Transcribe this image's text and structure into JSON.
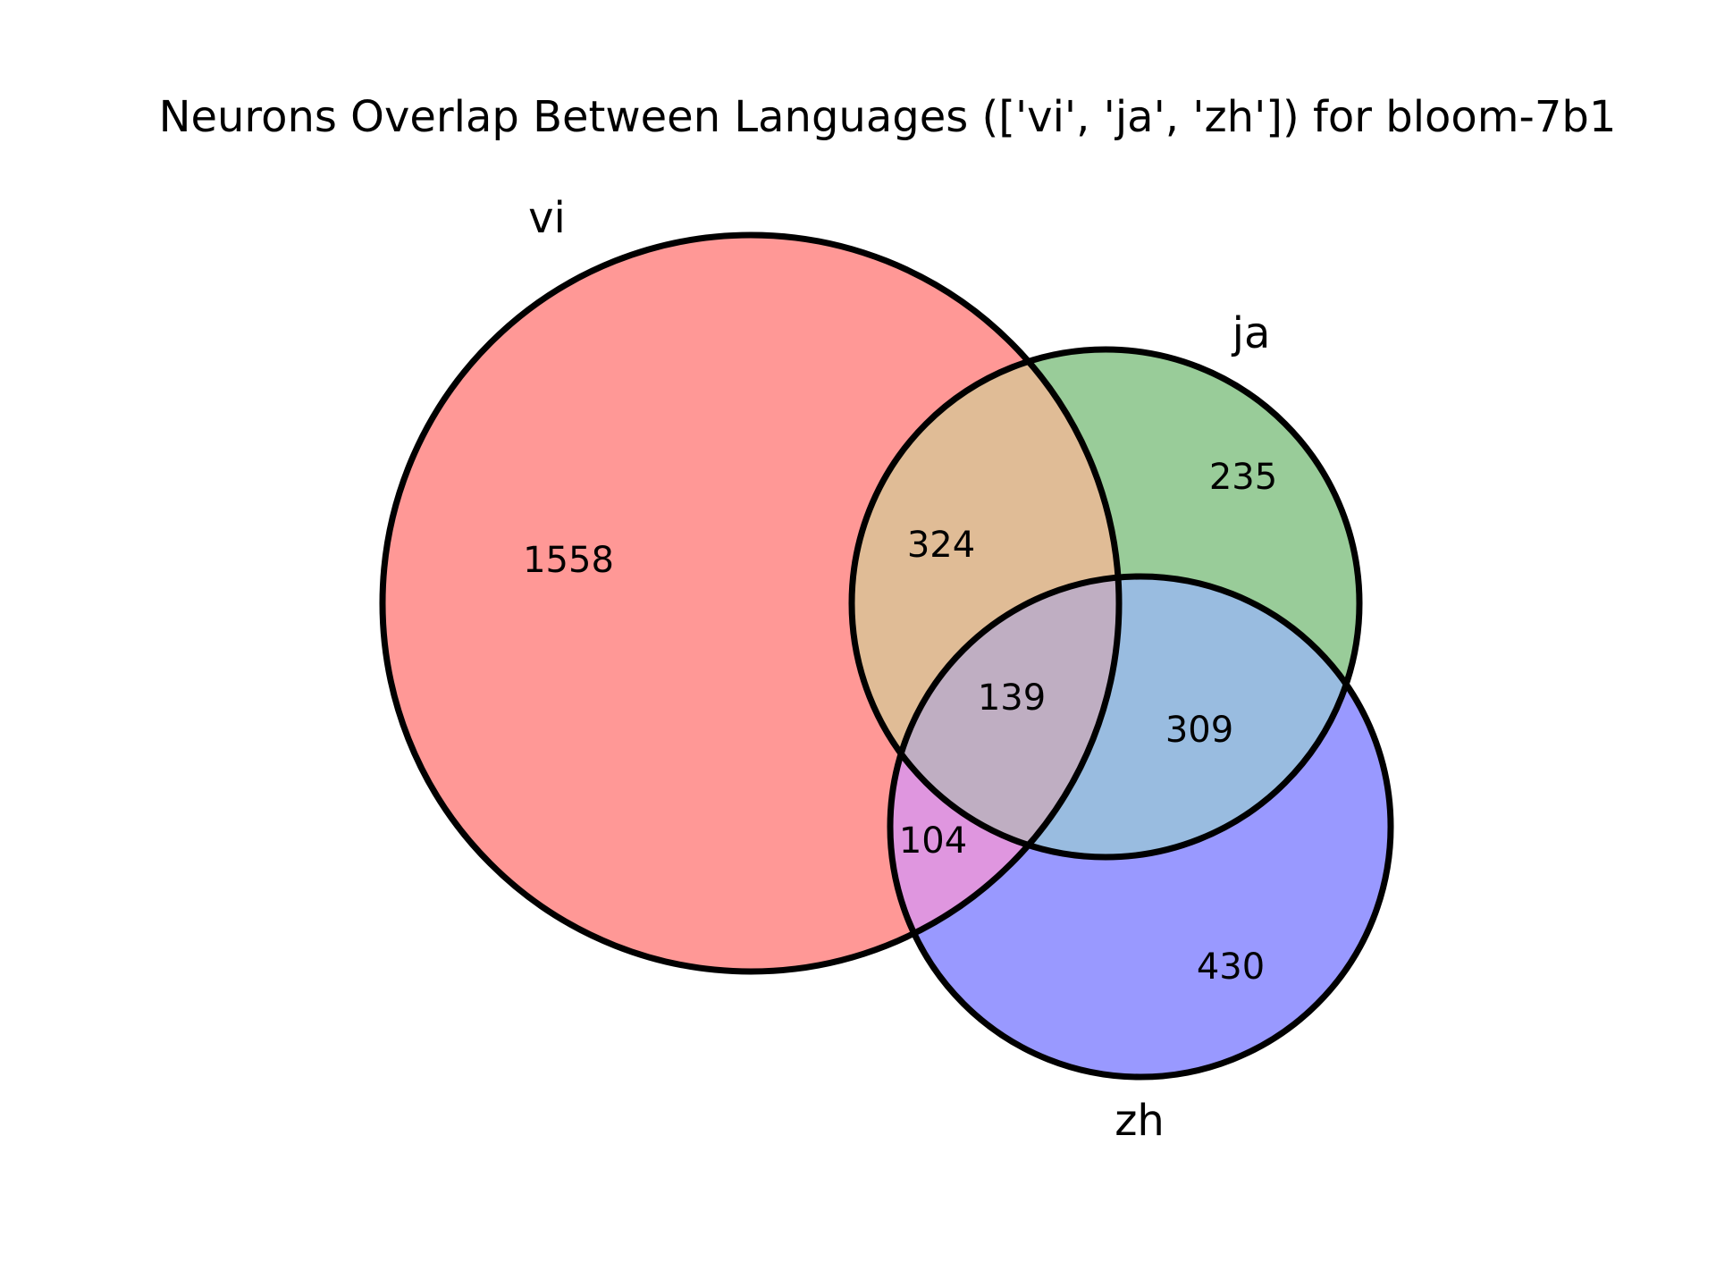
{
  "chart_data": {
    "type": "venn3",
    "title": "Neurons Overlap Between Languages (['vi', 'ja', 'zh']) for bloom-7b1",
    "sets": [
      {
        "id": "vi",
        "label": "vi",
        "color": "#ff9896"
      },
      {
        "id": "ja",
        "label": "ja",
        "color": "#99cc99"
      },
      {
        "id": "zh",
        "label": "zh",
        "color": "#9999ff"
      }
    ],
    "regions": [
      {
        "id": "vi_only",
        "sets": [
          "vi"
        ],
        "value": "1558",
        "color": "#ff9896"
      },
      {
        "id": "ja_only",
        "sets": [
          "ja"
        ],
        "value": "235",
        "color": "#99cc99"
      },
      {
        "id": "zh_only",
        "sets": [
          "zh"
        ],
        "value": "430",
        "color": "#9999ff"
      },
      {
        "id": "vi_ja",
        "sets": [
          "vi",
          "ja"
        ],
        "value": "324",
        "color": "#e0bc96"
      },
      {
        "id": "vi_zh",
        "sets": [
          "vi",
          "zh"
        ],
        "value": "104",
        "color": "#df96df"
      },
      {
        "id": "ja_zh",
        "sets": [
          "ja",
          "zh"
        ],
        "value": "309",
        "color": "#99bce0"
      },
      {
        "id": "vi_ja_zh",
        "sets": [
          "vi",
          "ja",
          "zh"
        ],
        "value": "139",
        "color": "#bfaec2"
      }
    ]
  }
}
